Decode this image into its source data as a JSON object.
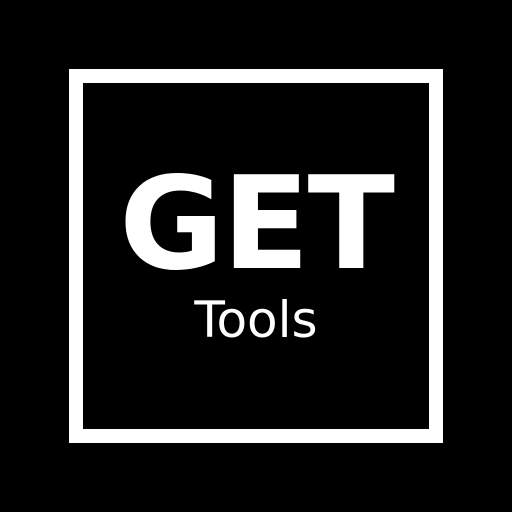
{
  "logo": {
    "main_text": "GET",
    "sub_text": "Tools"
  },
  "colors": {
    "background": "#000000",
    "foreground": "#ffffff"
  }
}
